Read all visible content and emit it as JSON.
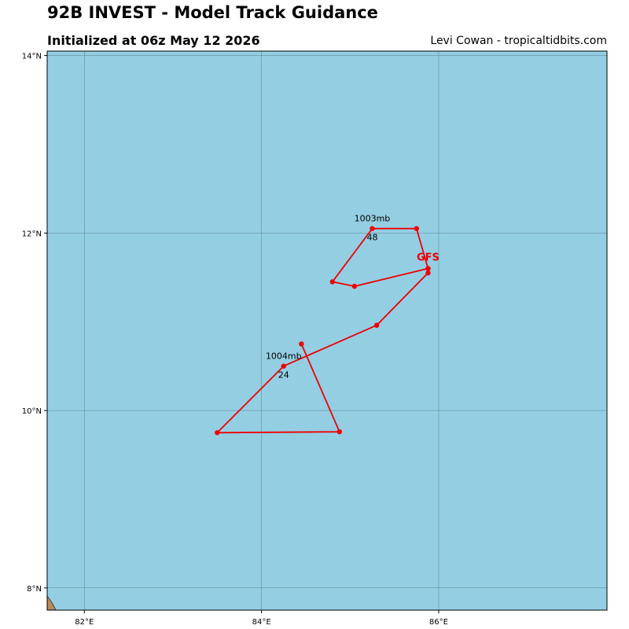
{
  "header": {
    "title": "92B INVEST - Model Track Guidance",
    "subtitle": "Initialized at 06z May 12 2026",
    "credit": "Levi Cowan - tropicaltidbits.com"
  },
  "colors": {
    "ocean": "#94cee3",
    "land": "#b48a5e",
    "grid": "#2f4f4f",
    "track": "#ee0000"
  },
  "chart_data": {
    "type": "scatter",
    "title": "92B INVEST - Model Track Guidance",
    "xlim": [
      81.58,
      87.9
    ],
    "ylim": [
      7.75,
      14.05
    ],
    "x_ticks": [
      {
        "value": 82,
        "label": "82°E"
      },
      {
        "value": 84,
        "label": "84°E"
      },
      {
        "value": 86,
        "label": "86°E"
      }
    ],
    "y_ticks": [
      {
        "value": 8,
        "label": "8°N"
      },
      {
        "value": 10,
        "label": "10°N"
      },
      {
        "value": 12,
        "label": "12°N"
      },
      {
        "value": 14,
        "label": "14°N"
      }
    ],
    "grid": true,
    "series": [
      {
        "name": "GFS",
        "color": "#ee0000",
        "points": [
          {
            "lon": 84.45,
            "lat": 10.75
          },
          {
            "lon": 84.88,
            "lat": 9.76
          },
          {
            "lon": 83.5,
            "lat": 9.75
          },
          {
            "lon": 84.25,
            "lat": 10.5
          },
          {
            "lon": 85.3,
            "lat": 10.96
          },
          {
            "lon": 85.88,
            "lat": 11.55
          },
          {
            "lon": 85.88,
            "lat": 11.6
          },
          {
            "lon": 85.05,
            "lat": 11.4
          },
          {
            "lon": 84.8,
            "lat": 11.45
          },
          {
            "lon": 85.25,
            "lat": 12.05
          },
          {
            "lon": 85.75,
            "lat": 12.05
          },
          {
            "lon": 85.88,
            "lat": 11.6
          }
        ]
      }
    ],
    "annotations": [
      {
        "lon": 84.25,
        "lat": 10.5,
        "pressure": "1004mb",
        "hour": "24"
      },
      {
        "lon": 85.25,
        "lat": 12.05,
        "pressure": "1003mb",
        "hour": "48"
      }
    ],
    "model_label": {
      "text": "GFS",
      "lon": 85.88,
      "lat": 11.6
    }
  }
}
